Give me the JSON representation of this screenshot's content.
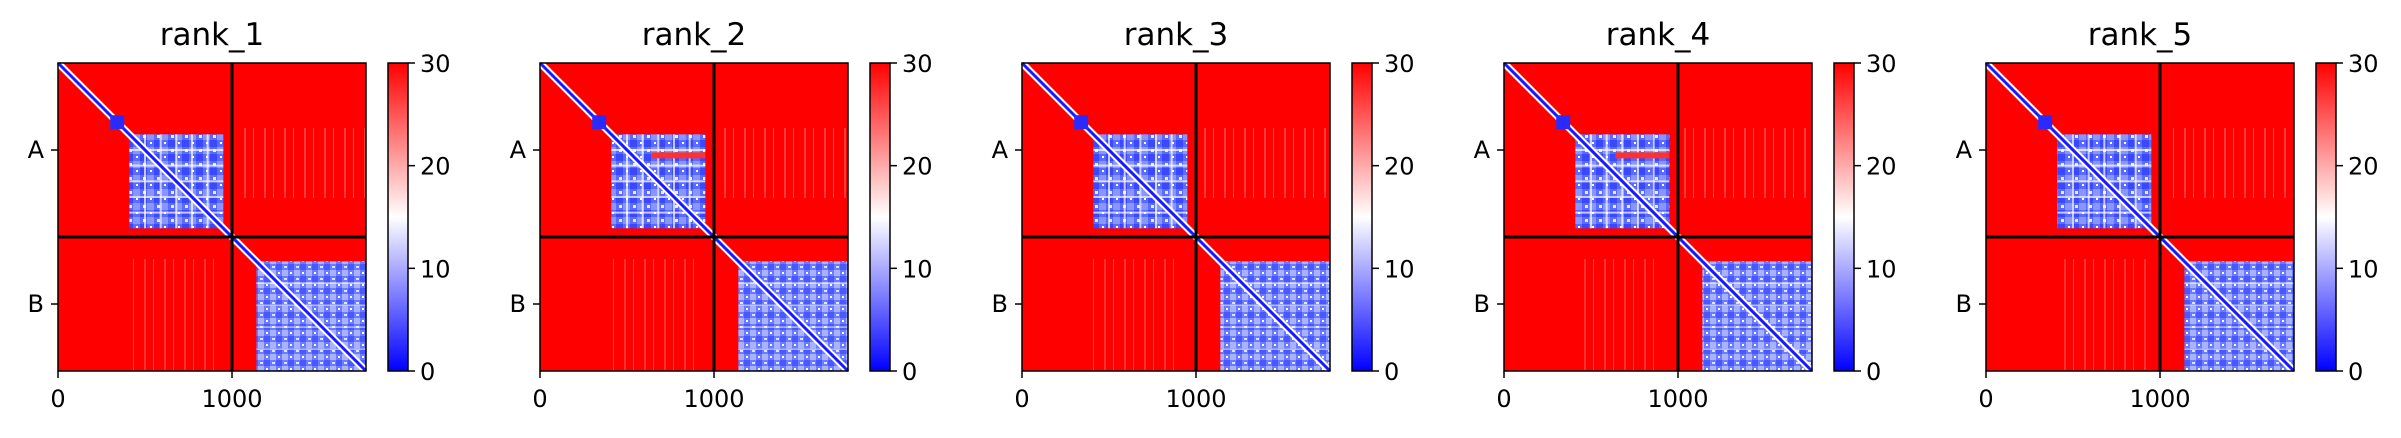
{
  "chart_data": [
    {
      "type": "heatmap",
      "title": "rank_1",
      "x_ticks": [
        "0",
        "1000"
      ],
      "y_ticks": [
        "A",
        "B"
      ],
      "colorbar": {
        "min": 0,
        "max": 30,
        "ticks": [
          "0",
          "10",
          "20",
          "30"
        ],
        "colormap": "bwr"
      },
      "chains": [
        {
          "label": "A",
          "start": 0,
          "end": 1000
        },
        {
          "label": "B",
          "start": 1000,
          "end": 1770
        }
      ],
      "total_length": 1770
    },
    {
      "type": "heatmap",
      "title": "rank_2",
      "x_ticks": [
        "0",
        "1000"
      ],
      "y_ticks": [
        "A",
        "B"
      ],
      "colorbar": {
        "min": 0,
        "max": 30,
        "ticks": [
          "0",
          "10",
          "20",
          "30"
        ],
        "colormap": "bwr"
      },
      "chains": [
        {
          "label": "A",
          "start": 0,
          "end": 1000
        },
        {
          "label": "B",
          "start": 1000,
          "end": 1770
        }
      ],
      "total_length": 1770
    },
    {
      "type": "heatmap",
      "title": "rank_3",
      "x_ticks": [
        "0",
        "1000"
      ],
      "y_ticks": [
        "A",
        "B"
      ],
      "colorbar": {
        "min": 0,
        "max": 30,
        "ticks": [
          "0",
          "10",
          "20",
          "30"
        ],
        "colormap": "bwr"
      },
      "chains": [
        {
          "label": "A",
          "start": 0,
          "end": 1000
        },
        {
          "label": "B",
          "start": 1000,
          "end": 1770
        }
      ],
      "total_length": 1770
    },
    {
      "type": "heatmap",
      "title": "rank_4",
      "x_ticks": [
        "0",
        "1000"
      ],
      "y_ticks": [
        "A",
        "B"
      ],
      "colorbar": {
        "min": 0,
        "max": 30,
        "ticks": [
          "0",
          "10",
          "20",
          "30"
        ],
        "colormap": "bwr"
      },
      "chains": [
        {
          "label": "A",
          "start": 0,
          "end": 1000
        },
        {
          "label": "B",
          "start": 1000,
          "end": 1770
        }
      ],
      "total_length": 1770
    },
    {
      "type": "heatmap",
      "title": "rank_5",
      "x_ticks": [
        "0",
        "1000"
      ],
      "y_ticks": [
        "A",
        "B"
      ],
      "colorbar": {
        "min": 0,
        "max": 30,
        "ticks": [
          "0",
          "10",
          "20",
          "30"
        ],
        "colormap": "bwr"
      },
      "chains": [
        {
          "label": "A",
          "start": 0,
          "end": 1000
        },
        {
          "label": "B",
          "start": 1000,
          "end": 1770
        }
      ],
      "total_length": 1770
    }
  ],
  "colors": {
    "low": "#0000ff",
    "mid": "#ffffff",
    "high": "#ff0000",
    "divider": "#000000"
  }
}
